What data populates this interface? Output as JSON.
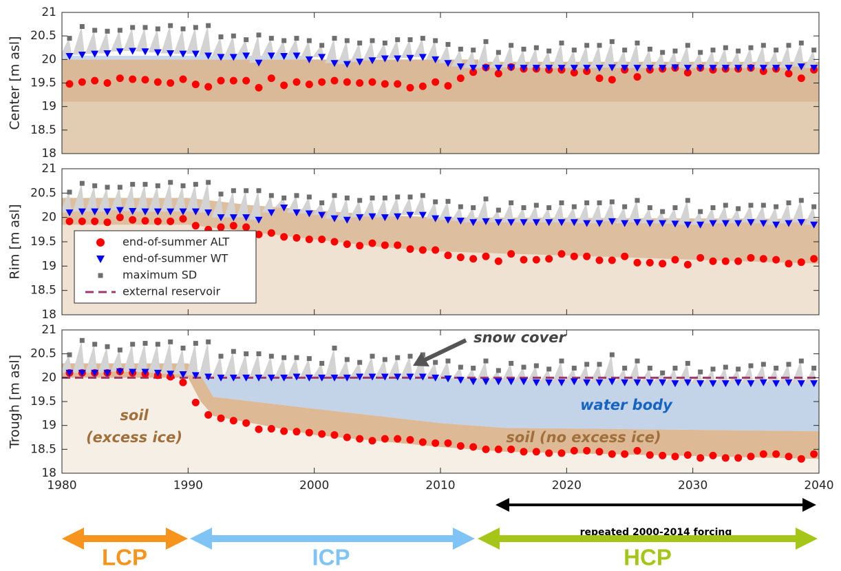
{
  "chart_data": [
    {
      "type": "scatter",
      "ylabel": "Center [m asl]",
      "xlim": [
        1980,
        2040
      ],
      "xticks": [
        1980,
        1990,
        2000,
        2010,
        2020,
        2030,
        2040
      ],
      "ylim": [
        18,
        21
      ],
      "yticks": [
        18,
        18.5,
        19,
        19.5,
        20,
        20.5,
        21
      ],
      "x": [
        1980.6,
        1981.6,
        1982.6,
        1983.6,
        1984.6,
        1985.6,
        1986.6,
        1987.6,
        1988.6,
        1989.6,
        1990.6,
        1991.6,
        1992.6,
        1993.6,
        1994.6,
        1995.6,
        1996.6,
        1997.6,
        1998.6,
        1999.6,
        2000.6,
        2001.6,
        2002.6,
        2003.6,
        2004.6,
        2005.6,
        2006.6,
        2007.6,
        2008.6,
        2009.6,
        2010.6,
        2011.6,
        2012.6,
        2013.6,
        2014.6,
        2015.6,
        2016.6,
        2017.6,
        2018.6,
        2019.6,
        2020.6,
        2021.6,
        2022.6,
        2023.6,
        2024.6,
        2025.6,
        2026.6,
        2027.6,
        2028.6,
        2029.6,
        2030.6,
        2031.6,
        2032.6,
        2033.6,
        2034.6,
        2035.6,
        2036.6,
        2037.6,
        2038.6,
        2039.6
      ],
      "series": [
        {
          "name": "end-of-summer ALT",
          "color": "#ff0000",
          "values": [
            19.48,
            19.52,
            19.55,
            19.5,
            19.6,
            19.58,
            19.57,
            19.52,
            19.5,
            19.58,
            19.47,
            19.42,
            19.55,
            19.55,
            19.55,
            19.4,
            19.6,
            19.45,
            19.52,
            19.47,
            19.52,
            19.55,
            19.52,
            19.5,
            19.52,
            19.48,
            19.48,
            19.4,
            19.43,
            19.52,
            19.44,
            19.6,
            19.73,
            19.83,
            19.7,
            19.84,
            19.8,
            19.8,
            19.78,
            19.78,
            19.72,
            19.75,
            19.6,
            19.57,
            19.78,
            19.63,
            19.78,
            19.8,
            19.82,
            19.72,
            19.82,
            19.78,
            19.8,
            19.8,
            19.82,
            19.75,
            19.8,
            19.7,
            19.6,
            19.78
          ]
        },
        {
          "name": "end-of-summer WT",
          "color": "#0000ff",
          "values": [
            20.07,
            20.1,
            20.12,
            20.13,
            20.17,
            20.18,
            20.17,
            20.15,
            20.13,
            20.12,
            20.12,
            20.08,
            20.05,
            20.05,
            20.08,
            19.93,
            20.08,
            20.07,
            20.08,
            20.0,
            20.05,
            19.92,
            19.9,
            19.95,
            19.98,
            20.02,
            20.02,
            20.03,
            20.05,
            20.0,
            19.92,
            19.85,
            19.82,
            19.82,
            19.82,
            19.83,
            19.82,
            19.82,
            19.82,
            19.82,
            19.82,
            19.82,
            19.82,
            19.83,
            19.82,
            19.82,
            19.82,
            19.82,
            19.83,
            19.82,
            19.82,
            19.82,
            19.82,
            19.82,
            19.82,
            19.82,
            19.82,
            19.82,
            19.85,
            19.82
          ]
        },
        {
          "name": "maximum SD",
          "color": "#6e6e6e",
          "values": [
            20.45,
            20.7,
            20.62,
            20.6,
            20.62,
            20.68,
            20.68,
            20.65,
            20.72,
            20.65,
            20.68,
            20.72,
            20.48,
            20.5,
            20.42,
            20.52,
            20.45,
            20.4,
            20.45,
            20.4,
            20.3,
            20.45,
            20.4,
            20.35,
            20.4,
            20.35,
            20.42,
            20.42,
            20.45,
            20.4,
            20.32,
            20.22,
            20.2,
            20.38,
            20.15,
            20.3,
            20.22,
            20.25,
            20.18,
            20.35,
            20.2,
            20.3,
            20.3,
            20.38,
            20.2,
            20.35,
            20.22,
            20.15,
            20.18,
            20.3,
            20.15,
            20.2,
            20.25,
            20.18,
            20.25,
            20.3,
            20.2,
            20.3,
            20.35,
            20.2
          ]
        }
      ],
      "areas": [
        {
          "color": "#e2cdb3",
          "x": [
            1980,
            2040
          ],
          "lower": [
            18,
            18
          ],
          "upper": [
            19.1,
            19.1
          ]
        },
        {
          "color": "#d9b998",
          "x": [
            1980,
            2013,
            2013,
            2040
          ],
          "lower": [
            19.1,
            19.1,
            19.1,
            19.1
          ],
          "upper": [
            20.0,
            20.0,
            19.95,
            19.95
          ]
        },
        {
          "color": "#c8d8ea",
          "x": [
            1980,
            1999
          ],
          "lower": [
            20.0,
            20.0
          ],
          "upper": [
            20.08,
            20.08
          ]
        }
      ]
    },
    {
      "type": "scatter",
      "ylabel": "Rim [m asl]",
      "xlim": [
        1980,
        2040
      ],
      "xticks": [
        1980,
        1990,
        2000,
        2010,
        2020,
        2030,
        2040
      ],
      "ylim": [
        18,
        21
      ],
      "yticks": [
        18,
        18.5,
        19,
        19.5,
        20,
        20.5,
        21
      ],
      "x": [
        1980.6,
        1981.6,
        1982.6,
        1983.6,
        1984.6,
        1985.6,
        1986.6,
        1987.6,
        1988.6,
        1989.6,
        1990.6,
        1991.6,
        1992.6,
        1993.6,
        1994.6,
        1995.6,
        1996.6,
        1997.6,
        1998.6,
        1999.6,
        2000.6,
        2001.6,
        2002.6,
        2003.6,
        2004.6,
        2005.6,
        2006.6,
        2007.6,
        2008.6,
        2009.6,
        2010.6,
        2011.6,
        2012.6,
        2013.6,
        2014.6,
        2015.6,
        2016.6,
        2017.6,
        2018.6,
        2019.6,
        2020.6,
        2021.6,
        2022.6,
        2023.6,
        2024.6,
        2025.6,
        2026.6,
        2027.6,
        2028.6,
        2029.6,
        2030.6,
        2031.6,
        2032.6,
        2033.6,
        2034.6,
        2035.6,
        2036.6,
        2037.6,
        2038.6,
        2039.6
      ],
      "series": [
        {
          "name": "end-of-summer ALT",
          "color": "#ff0000",
          "values": [
            19.92,
            19.92,
            19.92,
            19.9,
            20.0,
            19.95,
            19.93,
            19.92,
            19.92,
            19.97,
            19.83,
            19.75,
            19.8,
            19.83,
            19.8,
            19.65,
            19.68,
            19.6,
            19.58,
            19.55,
            19.55,
            19.5,
            19.45,
            19.42,
            19.47,
            19.43,
            19.43,
            19.35,
            19.33,
            19.33,
            19.22,
            19.18,
            19.15,
            19.2,
            19.1,
            19.25,
            19.13,
            19.13,
            19.15,
            19.25,
            19.2,
            19.2,
            19.12,
            19.12,
            19.2,
            19.07,
            19.07,
            19.05,
            19.13,
            19.03,
            19.17,
            19.1,
            19.1,
            19.1,
            19.17,
            19.15,
            19.13,
            19.05,
            19.08,
            19.15
          ]
        },
        {
          "name": "end-of-summer WT",
          "color": "#0000ff",
          "values": [
            20.1,
            20.12,
            20.12,
            20.12,
            20.15,
            20.13,
            20.12,
            20.12,
            20.12,
            20.12,
            20.12,
            20.1,
            20.0,
            20.0,
            20.0,
            19.95,
            20.1,
            20.2,
            20.1,
            20.08,
            20.05,
            19.98,
            19.95,
            20.0,
            20.02,
            20.0,
            20.02,
            20.05,
            20.05,
            19.98,
            19.95,
            19.93,
            19.9,
            19.92,
            19.9,
            19.9,
            19.9,
            19.9,
            19.9,
            19.9,
            19.9,
            19.88,
            19.88,
            19.92,
            19.88,
            19.9,
            19.88,
            19.88,
            19.87,
            19.85,
            19.85,
            19.88,
            19.88,
            19.88,
            19.9,
            19.88,
            19.85,
            19.88,
            19.9,
            19.85
          ]
        },
        {
          "name": "maximum SD",
          "color": "#6e6e6e",
          "values": [
            20.52,
            20.7,
            20.65,
            20.62,
            20.62,
            20.68,
            20.68,
            20.65,
            20.72,
            20.65,
            20.68,
            20.72,
            20.48,
            20.55,
            20.55,
            20.55,
            20.45,
            20.4,
            20.45,
            20.42,
            20.3,
            20.45,
            20.4,
            20.35,
            20.4,
            20.4,
            20.42,
            20.42,
            20.45,
            20.32,
            20.33,
            20.22,
            20.2,
            20.38,
            20.15,
            20.3,
            20.2,
            20.25,
            20.2,
            20.3,
            20.22,
            20.3,
            20.3,
            20.32,
            20.22,
            20.35,
            20.2,
            20.12,
            20.2,
            20.35,
            20.12,
            20.2,
            20.25,
            20.18,
            20.25,
            20.25,
            20.22,
            20.3,
            20.35,
            20.22
          ]
        }
      ],
      "areas": [
        {
          "color": "#efe2d3",
          "x": [
            1980,
            1990,
            1995,
            2000,
            2005,
            2010,
            2040
          ],
          "lower": [
            18,
            18,
            18,
            18,
            18,
            18,
            18
          ],
          "upper": [
            20.4,
            20.4,
            20.25,
            20.15,
            20.05,
            20.0,
            19.97
          ]
        },
        {
          "color": "#ddbf9f",
          "x": [
            1980,
            1990,
            1995,
            2000,
            2005,
            2010,
            2040
          ],
          "lower": [
            19.85,
            19.85,
            19.7,
            19.55,
            19.4,
            19.3,
            19.05
          ],
          "upper": [
            20.4,
            20.4,
            20.25,
            20.15,
            20.05,
            20.0,
            19.97
          ]
        }
      ]
    },
    {
      "type": "scatter",
      "ylabel": "Trough [m asl]",
      "xlim": [
        1980,
        2040
      ],
      "xticks": [
        1980,
        1990,
        2000,
        2010,
        2020,
        2030,
        2040
      ],
      "ylim": [
        18,
        21
      ],
      "yticks": [
        18,
        18.5,
        19,
        19.5,
        20,
        20.5,
        21
      ],
      "x": [
        1980.6,
        1981.6,
        1982.6,
        1983.6,
        1984.6,
        1985.6,
        1986.6,
        1987.6,
        1988.6,
        1989.6,
        1990.6,
        1991.6,
        1992.6,
        1993.6,
        1994.6,
        1995.6,
        1996.6,
        1997.6,
        1998.6,
        1999.6,
        2000.6,
        2001.6,
        2002.6,
        2003.6,
        2004.6,
        2005.6,
        2006.6,
        2007.6,
        2008.6,
        2009.6,
        2010.6,
        2011.6,
        2012.6,
        2013.6,
        2014.6,
        2015.6,
        2016.6,
        2017.6,
        2018.6,
        2019.6,
        2020.6,
        2021.6,
        2022.6,
        2023.6,
        2024.6,
        2025.6,
        2026.6,
        2027.6,
        2028.6,
        2029.6,
        2030.6,
        2031.6,
        2032.6,
        2033.6,
        2034.6,
        2035.6,
        2036.6,
        2037.6,
        2038.6,
        2039.6
      ],
      "series": [
        {
          "name": "end-of-summer ALT",
          "color": "#ff0000",
          "values": [
            20.1,
            20.1,
            20.1,
            20.1,
            20.13,
            20.1,
            20.08,
            20.05,
            20.02,
            19.9,
            19.48,
            19.22,
            19.15,
            19.1,
            19.05,
            18.92,
            18.93,
            18.88,
            18.87,
            18.85,
            18.82,
            18.8,
            18.75,
            18.72,
            18.68,
            18.72,
            18.72,
            18.7,
            18.65,
            18.63,
            18.63,
            18.57,
            18.55,
            18.5,
            18.5,
            18.5,
            18.45,
            18.45,
            18.42,
            18.42,
            18.47,
            18.47,
            18.45,
            18.4,
            18.4,
            18.47,
            18.38,
            18.37,
            18.35,
            18.38,
            18.32,
            18.37,
            18.32,
            18.32,
            18.35,
            18.4,
            18.4,
            18.35,
            18.3,
            18.4
          ]
        },
        {
          "name": "end-of-summer WT",
          "color": "#0000ff",
          "values": [
            20.1,
            20.1,
            20.1,
            20.1,
            20.13,
            20.12,
            20.12,
            20.1,
            20.08,
            20.07,
            20.05,
            20.02,
            20.0,
            20.0,
            20.0,
            20.0,
            20.0,
            20.0,
            20.02,
            20.0,
            20.0,
            20.0,
            20.0,
            20.02,
            20.02,
            20.02,
            20.02,
            20.02,
            20.02,
            20.0,
            19.98,
            19.95,
            19.92,
            19.92,
            19.92,
            19.92,
            19.92,
            19.9,
            19.9,
            19.9,
            19.92,
            19.9,
            19.9,
            19.92,
            19.9,
            19.9,
            19.9,
            19.9,
            19.88,
            19.9,
            19.88,
            19.88,
            19.88,
            19.9,
            19.88,
            19.9,
            19.88,
            19.9,
            19.88,
            19.88
          ]
        },
        {
          "name": "maximum SD",
          "color": "#6e6e6e",
          "values": [
            20.48,
            20.78,
            20.7,
            20.65,
            20.58,
            20.7,
            20.72,
            20.7,
            20.75,
            20.62,
            20.72,
            20.75,
            20.45,
            20.55,
            20.5,
            20.5,
            20.45,
            20.42,
            20.42,
            20.4,
            20.3,
            20.62,
            20.38,
            20.32,
            20.45,
            20.38,
            20.42,
            20.45,
            20.48,
            20.32,
            20.35,
            20.22,
            20.2,
            20.35,
            20.15,
            20.3,
            20.22,
            20.25,
            20.18,
            20.35,
            20.2,
            20.28,
            20.28,
            20.48,
            20.2,
            20.35,
            20.2,
            20.1,
            20.2,
            20.3,
            20.12,
            20.18,
            20.22,
            20.18,
            20.25,
            20.28,
            20.2,
            20.28,
            20.35,
            20.2
          ]
        }
      ],
      "reservoir": {
        "name": "external reservoir",
        "color": "#9e3a6a",
        "value": 20
      },
      "areas": [
        {
          "color": "#f6efe6",
          "x": [
            1980,
            2040
          ],
          "lower": [
            18,
            18
          ],
          "upper": [
            20.0,
            20.0
          ]
        },
        {
          "color": "#deb996",
          "x": [
            1980,
            1990,
            1991,
            1992,
            2000,
            2010,
            2015,
            2040
          ],
          "lower": [
            20.0,
            20.0,
            19.5,
            19.2,
            18.8,
            18.55,
            18.45,
            18.3
          ],
          "upper": [
            20.3,
            20.3,
            20.05,
            19.6,
            19.35,
            19.05,
            18.95,
            18.88
          ]
        },
        {
          "color": "#c3d4e8",
          "x": [
            1991,
            1992,
            2000,
            2010,
            2015,
            2040
          ],
          "lower": [
            20.05,
            19.6,
            19.35,
            19.05,
            18.95,
            18.88
          ],
          "upper": [
            20.05,
            20.02,
            20.0,
            20.0,
            19.95,
            19.9
          ]
        }
      ],
      "annotations": {
        "snow": "snow cover",
        "water": "water body",
        "soil_ice_1": "soil",
        "soil_ice_2": "(excess ice)",
        "soil_no_ice": "soil (no excess ice)"
      }
    }
  ],
  "periods": {
    "forcing": "repeated 2000-2014 forcing",
    "lcp": "LCP",
    "icp": "ICP",
    "hcp": "HCP"
  }
}
